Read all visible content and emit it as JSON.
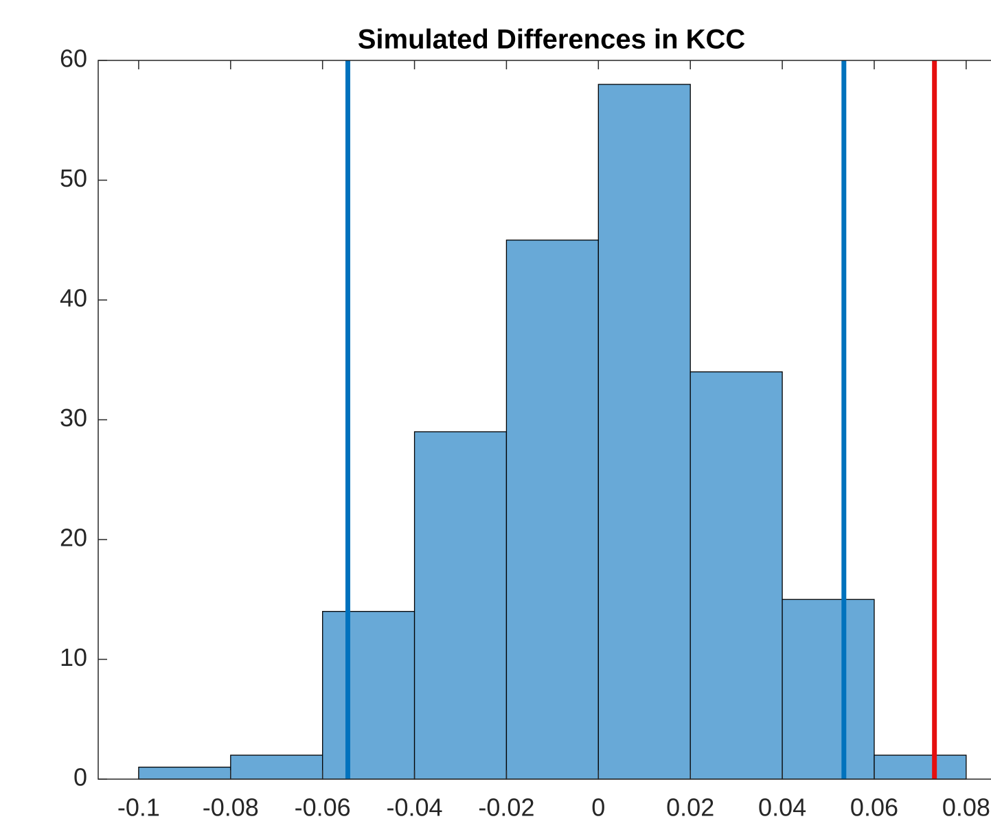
{
  "chart_data": {
    "type": "histogram",
    "title": "Simulated Differences in KCC",
    "bins": [
      -0.1,
      -0.08,
      -0.06,
      -0.04,
      -0.02,
      0,
      0.02,
      0.04,
      0.06,
      0.08
    ],
    "counts": [
      1,
      2,
      14,
      29,
      45,
      58,
      34,
      15,
      2
    ],
    "color": "#68a9d7",
    "xlim": [
      -0.1088,
      0.0854
    ],
    "ylim": [
      0,
      60
    ],
    "xticks": [
      -0.1,
      -0.08,
      -0.06,
      -0.04,
      -0.02,
      0,
      0.02,
      0.04,
      0.06,
      0.08
    ],
    "yticks": [
      0,
      10,
      20,
      30,
      40,
      50,
      60
    ],
    "reference_lines": [
      {
        "value": -0.0545,
        "color": "#0072bd"
      },
      {
        "value": 0.0534,
        "color": "#0072bd"
      },
      {
        "value": 0.0731,
        "color": "#e50f0f"
      }
    ]
  }
}
